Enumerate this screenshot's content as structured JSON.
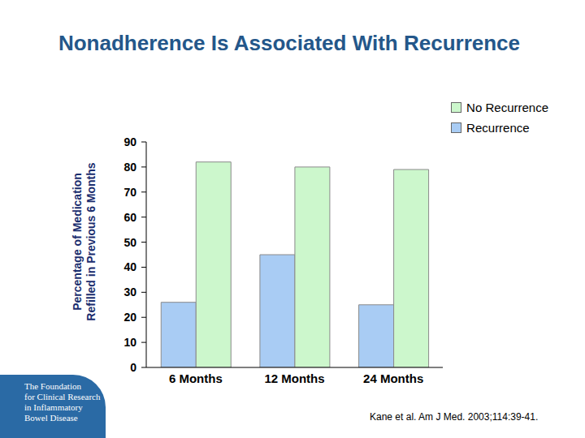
{
  "chart_data": {
    "type": "bar",
    "title": "Nonadherence Is Associated With Recurrence",
    "y_label": "Percentage of Medication\nRefilled in Previous 6 Months",
    "categories": [
      "6 Months",
      "12 Months",
      "24 Months"
    ],
    "series": [
      {
        "name": "Recurrence",
        "color": "#a9ccf4",
        "values": [
          26,
          45,
          25
        ]
      },
      {
        "name": "No Recurrence",
        "color": "#ccf7cc",
        "values": [
          82,
          80,
          79
        ]
      }
    ],
    "ylim": [
      0,
      90
    ],
    "yticks": [
      0,
      10,
      20,
      30,
      40,
      50,
      60,
      70,
      80,
      90
    ],
    "grid": false,
    "legend": "top right",
    "source": "Kane et al. Am J Med. 2003;114:39-41.",
    "logo": "The Foundation\nfor Clinical Research\nin Inflammatory\nBowel Disease"
  }
}
